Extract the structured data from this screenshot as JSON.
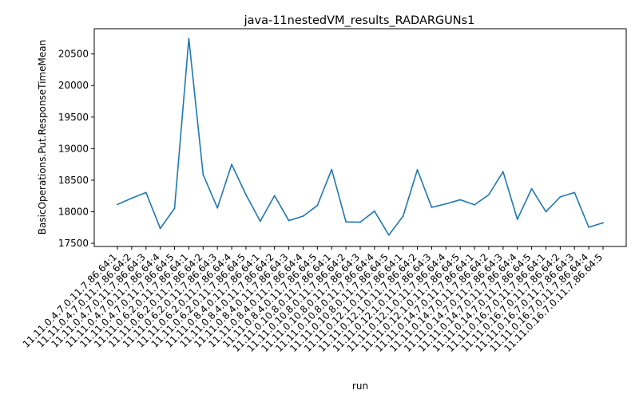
{
  "chart_data": {
    "type": "line",
    "title": "java-11nestedVM_results_RADARGUNs1",
    "xlabel": "run",
    "ylabel": "BasicOperations.Put.ResponseTimeMean",
    "ylim": [
      17450,
      20900
    ],
    "yticks": [
      17500,
      18000,
      18500,
      19000,
      19500,
      20000,
      20500
    ],
    "grid": false,
    "categories": [
      "11.11.0.4.7.0.11.7.86.64:1",
      "11.11.0.4.7.0.11.7.86.64:2",
      "11.11.0.4.7.0.11.7.86.64:3",
      "11.11.0.4.7.0.11.7.86.64:4",
      "11.11.0.4.7.0.11.7.86.64:5",
      "11.11.0.6.2.0.11.7.86.64:1",
      "11.11.0.6.2.0.11.7.86.64:2",
      "11.11.0.6.2.0.11.7.86.64:3",
      "11.11.0.6.2.0.11.7.86.64:4",
      "11.11.0.6.2.0.11.7.86.64:5",
      "11.11.0.8.4.0.11.7.86.64:1",
      "11.11.0.8.4.0.11.7.86.64:2",
      "11.11.0.8.4.0.11.7.86.64:3",
      "11.11.0.8.4.0.11.7.86.64:4",
      "11.11.0.8.4.0.11.7.86.64:5",
      "11.11.0.10.8.0.11.7.86.64:1",
      "11.11.0.10.8.0.11.7.86.64:2",
      "11.11.0.10.8.0.11.7.86.64:3",
      "11.11.0.10.8.0.11.7.86.64:4",
      "11.11.0.10.8.0.11.7.86.64:5",
      "11.11.0.12.1.0.11.7.86.64:1",
      "11.11.0.12.1.0.11.7.86.64:2",
      "11.11.0.12.1.0.11.7.86.64:3",
      "11.11.0.12.1.0.11.7.86.64:4",
      "11.11.0.12.1.0.11.7.86.64:5",
      "11.11.0.14.7.0.11.7.86.64:1",
      "11.11.0.14.7.0.11.7.86.64:2",
      "11.11.0.14.7.0.11.7.86.64:3",
      "11.11.0.14.7.0.11.7.86.64:4",
      "11.11.0.14.7.0.11.7.86.64:5",
      "11.11.0.16.7.0.11.7.86.64:1",
      "11.11.0.16.7.0.11.7.86.64:2",
      "11.11.0.16.7.0.11.7.86.64:3",
      "11.11.0.16.7.0.11.7.86.64:4",
      "11.11.0.16.7.0.11.7.86.64:5"
    ],
    "series": [
      {
        "color": "#1f77b4",
        "values": [
          18115,
          18215,
          18305,
          17735,
          18055,
          20745,
          18590,
          18060,
          18750,
          18270,
          17850,
          18255,
          17860,
          17930,
          18100,
          18670,
          17840,
          17835,
          18010,
          17630,
          17930,
          18665,
          18070,
          18125,
          18190,
          18110,
          18270,
          18635,
          17880,
          18365,
          18000,
          18235,
          18305,
          17755,
          17825
        ]
      }
    ]
  }
}
